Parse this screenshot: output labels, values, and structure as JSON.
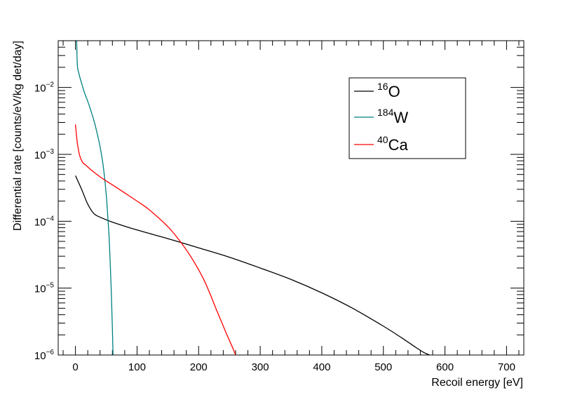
{
  "chart_data": {
    "type": "line",
    "title": "",
    "xlabel": "Recoil energy [eV]",
    "ylabel": "Differential rate [counts/eV/kg det/day]",
    "xlim": [
      -28,
      728
    ],
    "ylim": [
      1e-06,
      0.05
    ],
    "yscale": "log",
    "grid": false,
    "legend_position": "top-right",
    "x_ticks": [
      0,
      100,
      200,
      300,
      400,
      500,
      600,
      700
    ],
    "x_tick_labels": [
      "0",
      "100",
      "200",
      "300",
      "400",
      "500",
      "600",
      "700"
    ],
    "y_ticks": [
      1e-06,
      1e-05,
      0.0001,
      0.001,
      0.01
    ],
    "y_tick_labels": [
      {
        "base": "10",
        "exp": "−6"
      },
      {
        "base": "10",
        "exp": "−5"
      },
      {
        "base": "10",
        "exp": "−4"
      },
      {
        "base": "10",
        "exp": "−3"
      },
      {
        "base": "10",
        "exp": "−2"
      }
    ],
    "series": [
      {
        "name": "O",
        "mass_number": "16",
        "color": "#000000",
        "x": [
          0,
          10,
          20,
          30,
          40,
          60,
          100,
          150,
          200,
          250,
          300,
          350,
          400,
          450,
          500,
          530,
          550,
          565,
          575
        ],
        "y": [
          0.00048,
          0.0003,
          0.00018,
          0.00013,
          0.000115,
          9.7e-05,
          7.4e-05,
          5.5e-05,
          4e-05,
          2.9e-05,
          2e-05,
          1.35e-05,
          8.5e-06,
          5e-06,
          2.7e-06,
          1.8e-06,
          1.35e-06,
          1.1e-06,
          1e-06
        ]
      },
      {
        "name": "W",
        "mass_number": "184",
        "color": "#008080",
        "x": [
          2,
          3,
          5,
          10,
          15,
          20,
          25,
          30,
          35,
          40,
          45,
          50,
          53,
          55,
          58,
          60,
          61
        ],
        "y": [
          0.05,
          0.022,
          0.017,
          0.0115,
          0.0082,
          0.0062,
          0.0045,
          0.0032,
          0.0021,
          0.0013,
          0.00068,
          0.00025,
          0.0001,
          5e-05,
          1e-05,
          2.5e-06,
          1e-06
        ]
      },
      {
        "name": "Ca",
        "mass_number": "40",
        "color": "#ff0000",
        "x": [
          0,
          3,
          7,
          12,
          16,
          25,
          40,
          60,
          80,
          100,
          120,
          150,
          170,
          190,
          210,
          230,
          245,
          255,
          260
        ],
        "y": [
          0.0028,
          0.0015,
          0.00095,
          0.00075,
          0.0007,
          0.00059,
          0.00046,
          0.00035,
          0.000265,
          0.0002,
          0.000148,
          8.3e-05,
          5e-05,
          2.7e-05,
          1.25e-05,
          4.5e-06,
          2.1e-06,
          1.3e-06,
          1e-06
        ]
      }
    ]
  }
}
